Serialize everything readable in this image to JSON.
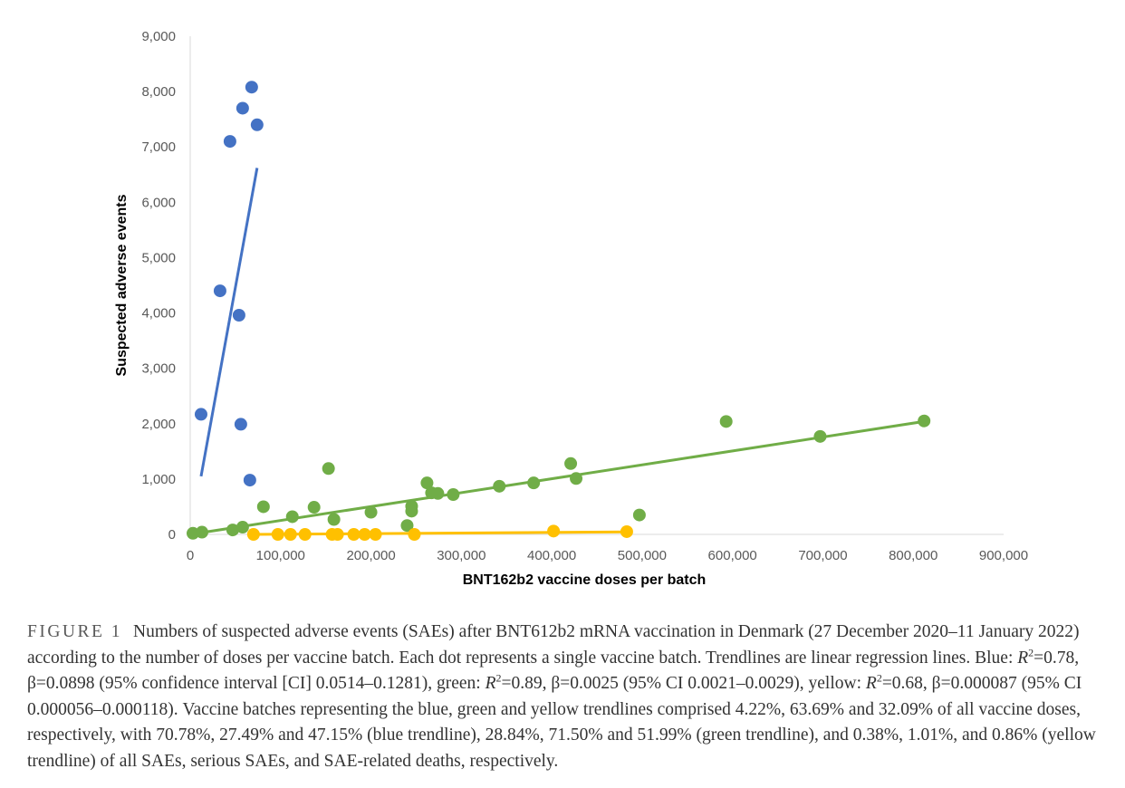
{
  "chart_data": {
    "type": "scatter",
    "xlabel": "BNT162b2 vaccine doses per batch",
    "ylabel": "Suspected adverse events",
    "xlim": [
      0,
      900000
    ],
    "ylim": [
      0,
      9000
    ],
    "x_ticks": [
      "0",
      "100,000",
      "200,000",
      "300,000",
      "400,000",
      "500,000",
      "600,000",
      "700,000",
      "800,000",
      "900,000"
    ],
    "y_ticks": [
      "0",
      "1,000",
      "2,000",
      "3,000",
      "4,000",
      "5,000",
      "6,000",
      "7,000",
      "8,000",
      "9,000"
    ],
    "grid": false,
    "legend": "none",
    "series": [
      {
        "color": "#4472c4",
        "points": [
          [
            12000,
            2170
          ],
          [
            33000,
            4400
          ],
          [
            44000,
            7100
          ],
          [
            54000,
            3960
          ],
          [
            56000,
            1990
          ],
          [
            58000,
            7700
          ],
          [
            66000,
            980
          ],
          [
            68000,
            8080
          ],
          [
            74000,
            7400
          ]
        ],
        "trendline": [
          [
            12000,
            1050
          ],
          [
            74000,
            6620
          ]
        ]
      },
      {
        "color": "#70ad47",
        "points": [
          [
            3000,
            20
          ],
          [
            13000,
            40
          ],
          [
            47000,
            80
          ],
          [
            58000,
            130
          ],
          [
            81000,
            500
          ],
          [
            113000,
            320
          ],
          [
            137000,
            490
          ],
          [
            153000,
            1190
          ],
          [
            159000,
            270
          ],
          [
            200000,
            400
          ],
          [
            240000,
            160
          ],
          [
            245000,
            510
          ],
          [
            245000,
            420
          ],
          [
            262000,
            930
          ],
          [
            267000,
            750
          ],
          [
            274000,
            740
          ],
          [
            291000,
            720
          ],
          [
            342000,
            870
          ],
          [
            380000,
            930
          ],
          [
            421000,
            1280
          ],
          [
            427000,
            1010
          ],
          [
            497000,
            350
          ],
          [
            593000,
            2040
          ],
          [
            697000,
            1770
          ],
          [
            812000,
            2050
          ]
        ],
        "trendline": [
          [
            0,
            0
          ],
          [
            812000,
            2040
          ]
        ]
      },
      {
        "color": "#ffc000",
        "points": [
          [
            70000,
            0
          ],
          [
            97000,
            0
          ],
          [
            111000,
            0
          ],
          [
            127000,
            0
          ],
          [
            157000,
            0
          ],
          [
            163000,
            0
          ],
          [
            181000,
            0
          ],
          [
            193000,
            0
          ],
          [
            205000,
            0
          ],
          [
            248000,
            0
          ],
          [
            402000,
            60
          ],
          [
            483000,
            50
          ]
        ],
        "trendline": [
          [
            70000,
            0
          ],
          [
            483000,
            45
          ]
        ]
      }
    ]
  },
  "caption": {
    "label": "FIGURE 1",
    "text_1": "Numbers of suspected adverse events (SAEs) after BNT612b2 mRNA vaccination in Denmark (27 December 2020–11 January 2022) according to the number of doses per vaccine batch. Each dot represents a single vaccine batch. Trendlines are linear regression lines. Blue: ",
    "r_symbol_1": "R",
    "sup_1": "2",
    "text_2": "=0.78, β=0.0898 (95% confidence interval [CI] 0.0514–0.1281), green: ",
    "r_symbol_2": "R",
    "sup_2": "2",
    "text_3": "=0.89, β=0.0025 (95% CI 0.0021–0.0029), yellow: ",
    "r_symbol_3": "R",
    "sup_3": "2",
    "text_4": "=0.68, β=0.000087 (95% CI 0.000056–0.000118). Vaccine batches representing the blue, green and yellow trendlines comprised 4.22%, 63.69% and 32.09% of all vaccine doses, respectively, with 70.78%, 27.49% and 47.15% (blue trendline), 28.84%, 71.50% and 51.99% (green trendline), and 0.38%, 1.01%, and 0.86% (yellow trendline) of all SAEs, serious SAEs, and SAE-related deaths, respectively."
  }
}
